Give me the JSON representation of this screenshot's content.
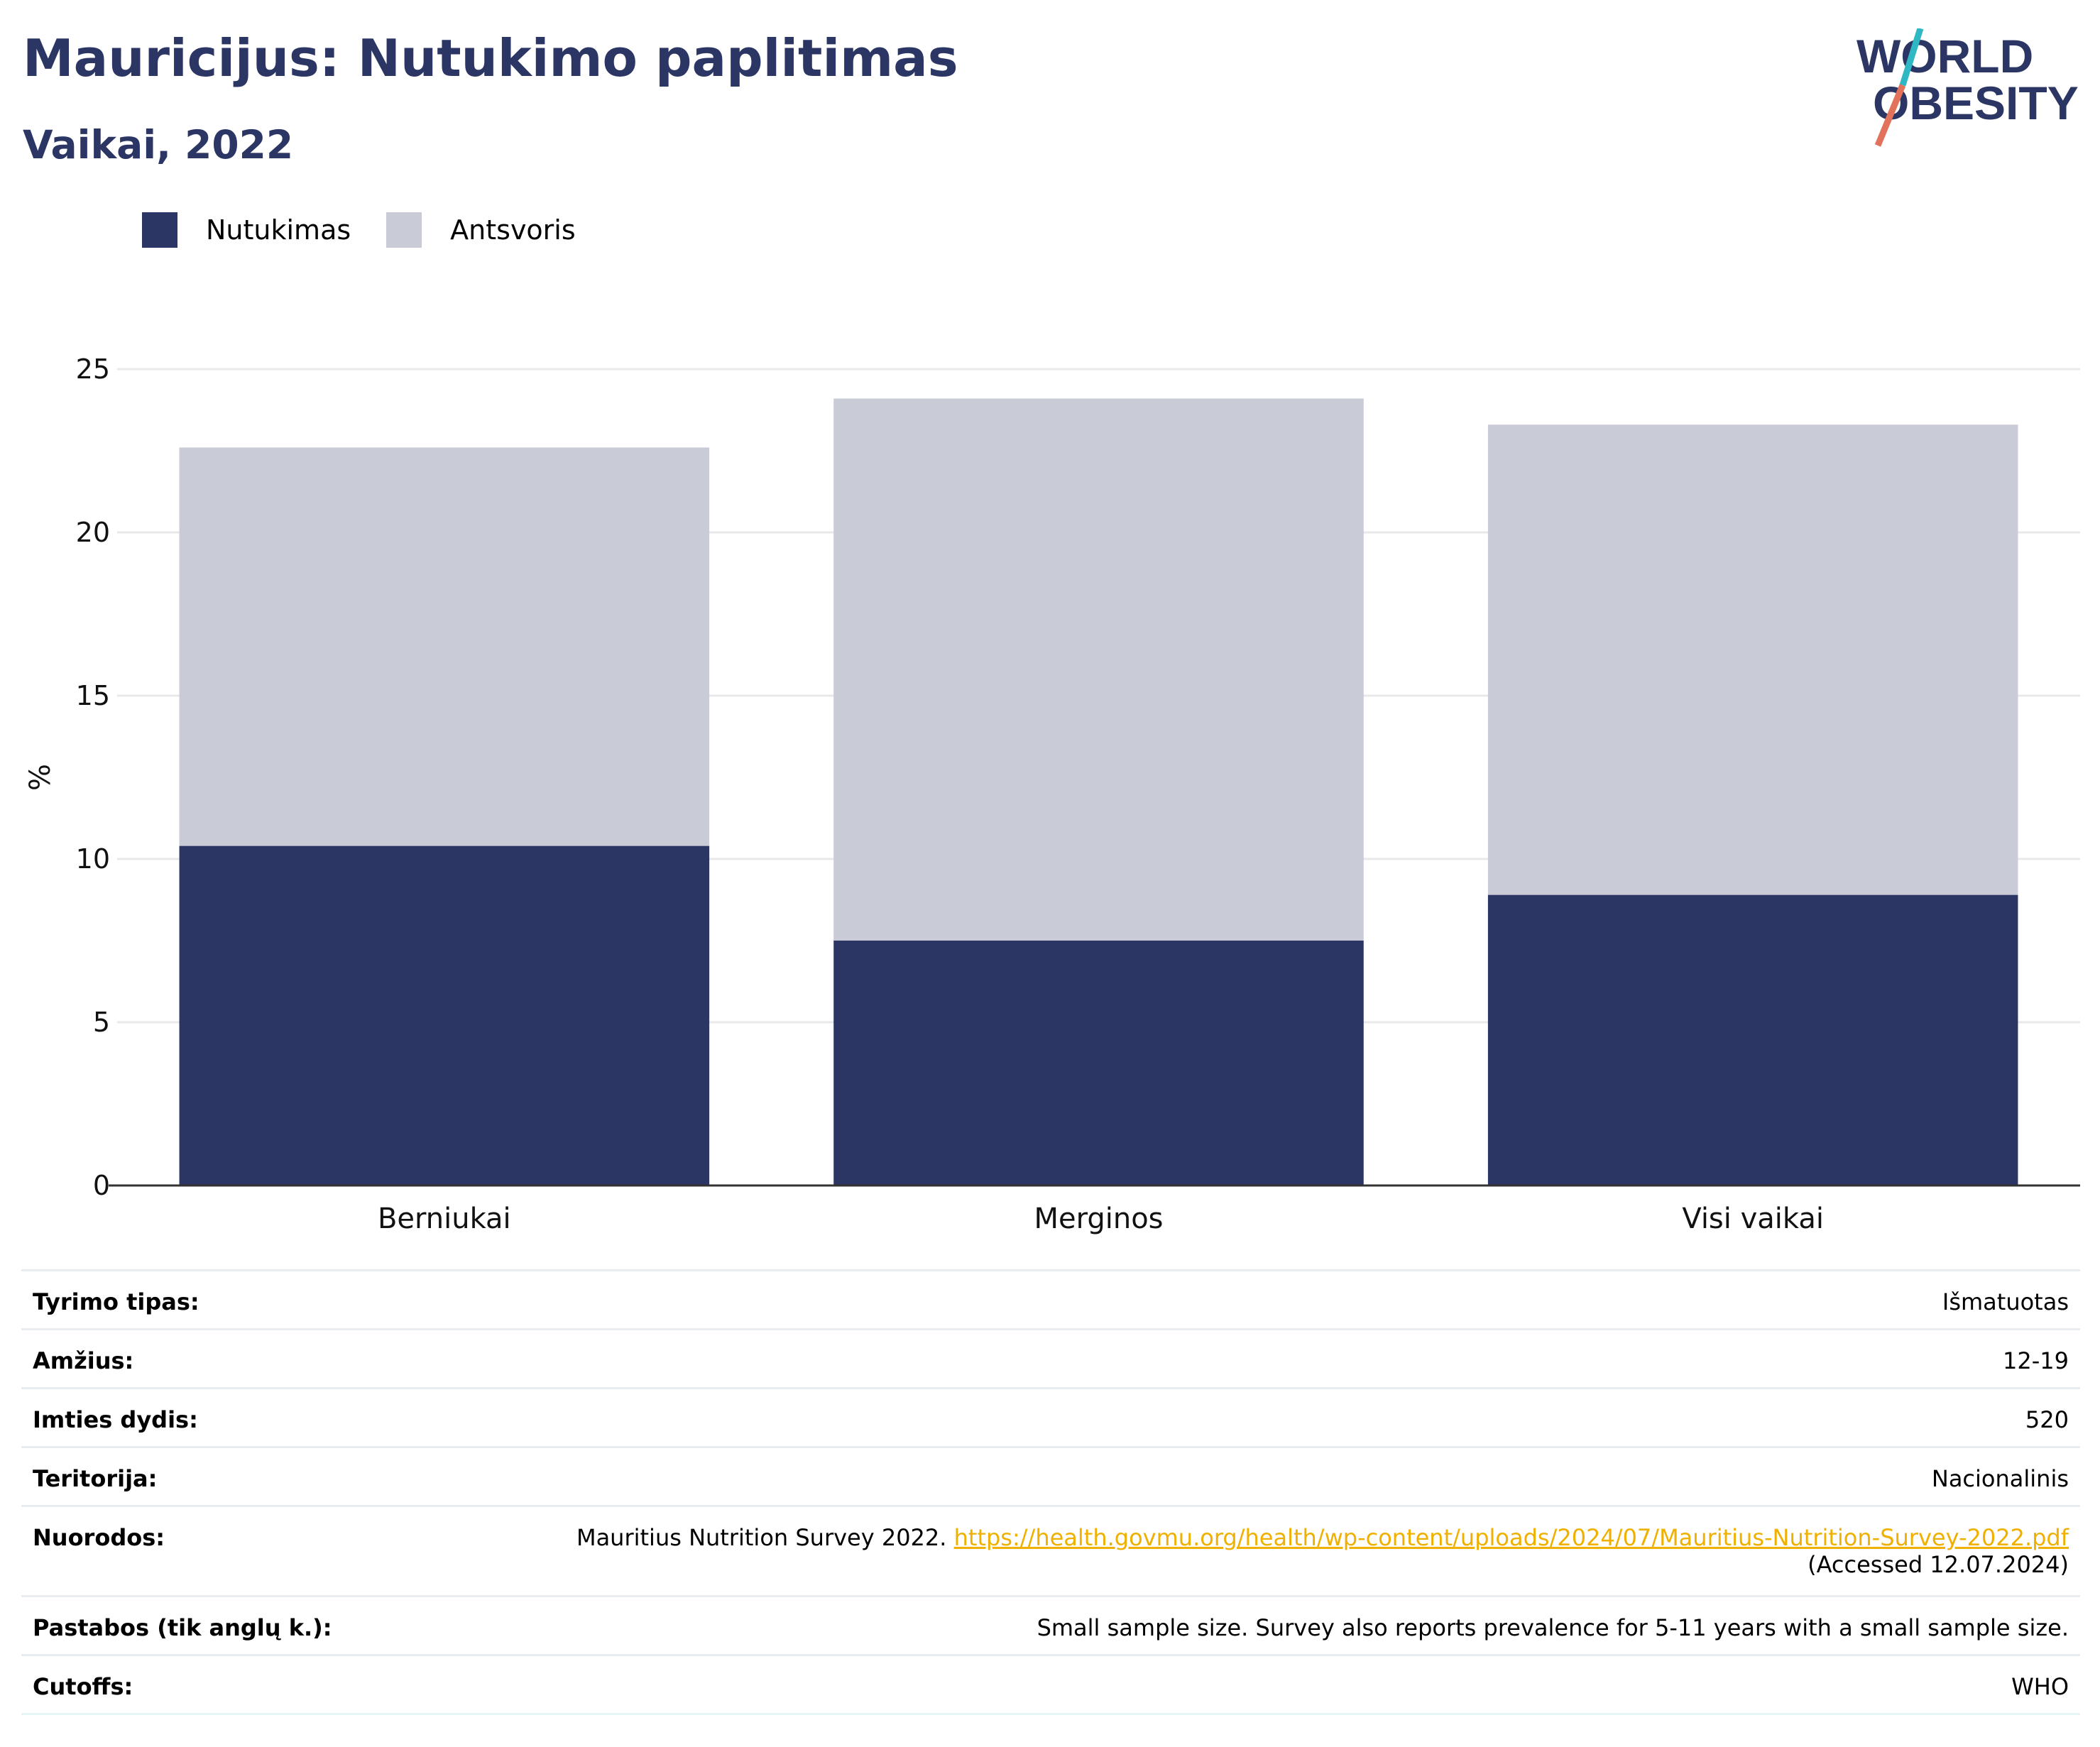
{
  "header": {
    "title": "Mauricijus: Nutukimo paplitimas",
    "subtitle": "Vaikai, 2022"
  },
  "logo": {
    "line1": "WORLD",
    "line2": "OBESITY",
    "accent_colors": [
      "#2fb7c4",
      "#e2725b"
    ]
  },
  "legend": [
    {
      "label": "Nutukimas",
      "color": "#2b3664"
    },
    {
      "label": "Antsvoris",
      "color": "#c9cbd7"
    }
  ],
  "chart_data": {
    "type": "bar",
    "stacked": true,
    "categories": [
      "Berniukai",
      "Merginos",
      "Visi vaikai"
    ],
    "series": [
      {
        "name": "Nutukimas",
        "color": "#2b3664",
        "values": [
          10.4,
          7.5,
          8.9
        ]
      },
      {
        "name": "Antsvoris",
        "color": "#c9cbd7",
        "values": [
          12.2,
          16.6,
          14.4
        ]
      }
    ],
    "ylabel": "%",
    "ylim": [
      0,
      25
    ],
    "yticks": [
      0,
      5,
      10,
      15,
      20,
      25
    ],
    "grid": true,
    "legend_position": "top-left"
  },
  "details": {
    "survey_type": {
      "label": "Tyrimo tipas:",
      "value": "Išmatuotas"
    },
    "age": {
      "label": "Amžius:",
      "value": "12-19"
    },
    "sample": {
      "label": "Imties dydis:",
      "value": "520"
    },
    "territory": {
      "label": "Teritorija:",
      "value": "Nacionalinis"
    },
    "references": {
      "label": "Nuorodos:",
      "text": "Mauritius Nutrition Survey 2022.",
      "link": "https://health.govmu.org/health/wp-content/uploads/2024/07/Mauritius-Nutrition-Survey-2022.pdf",
      "accessed": "(Accessed 12.07.2024)"
    },
    "notes": {
      "label": "Pastabos (tik anglų k.):",
      "value": "Small sample size. Survey also reports prevalence for 5-11 years with a small sample size."
    },
    "cutoffs": {
      "label": "Cutoffs:",
      "value": "WHO"
    }
  }
}
